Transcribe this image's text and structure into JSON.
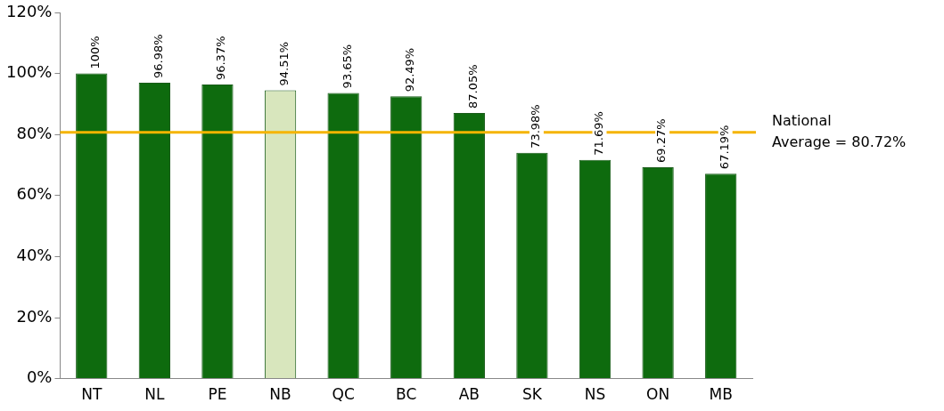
{
  "chart_data": {
    "type": "bar",
    "categories": [
      "NT",
      "NL",
      "PE",
      "NB",
      "QC",
      "BC",
      "AB",
      "SK",
      "NS",
      "ON",
      "MB"
    ],
    "values": [
      100,
      96.98,
      96.37,
      94.51,
      93.65,
      92.49,
      87.05,
      73.98,
      71.69,
      69.27,
      67.19
    ],
    "colors": [
      "#0e6b0e",
      "#0e6b0e",
      "#0e6b0e",
      "#d8e6bd",
      "#0e6b0e",
      "#0e6b0e",
      "#0e6b0e",
      "#0e6b0e",
      "#0e6b0e",
      "#0e6b0e",
      "#0e6b0e"
    ],
    "value_labels": [
      "100%",
      "96.98%",
      "96.37%",
      "94.51%",
      "93.65%",
      "92.49%",
      "87.05%",
      "73.98%",
      "71.69%",
      "69.27%",
      "67.19%"
    ],
    "ylim": [
      0,
      120
    ],
    "yticks": [
      {
        "value": 0,
        "label": "0%"
      },
      {
        "value": 20,
        "label": "20%"
      },
      {
        "value": 40,
        "label": "40%"
      },
      {
        "value": 60,
        "label": "60%"
      },
      {
        "value": 80,
        "label": "80%"
      },
      {
        "value": 100,
        "label": "100%"
      },
      {
        "value": 120,
        "label": "120%"
      }
    ],
    "ref_lines": [
      {
        "axis": "y",
        "value": 80.72,
        "label": "National\nAverage = 80.72%",
        "color": "#f5b400"
      }
    ],
    "grid": false,
    "legend": false
  }
}
